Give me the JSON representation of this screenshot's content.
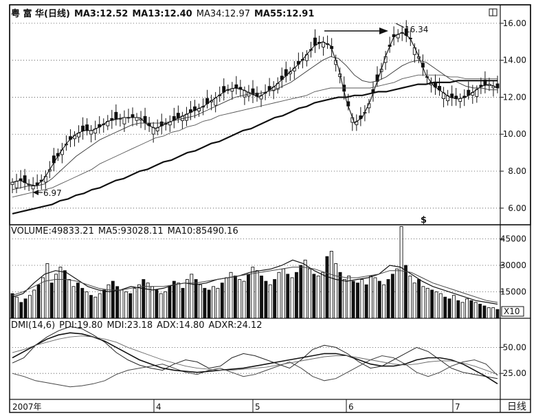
{
  "price_panel": {
    "stock_name": "粤 富 华(日线)",
    "ma3": "MA3:12.52",
    "ma13": "MA13:12.40",
    "ma34": "MA34:12.97",
    "ma55": "MA55:12.91",
    "high_label": "16.34",
    "low_label": "6.97",
    "marker": "$"
  },
  "volume_panel": {
    "volume": "VOLUME:49833.21",
    "ma5": "MA5:93028.11",
    "ma10": "MA10:85490.16",
    "unit_badge": "X10"
  },
  "dmi_panel": {
    "title": "DMI(14,6)",
    "pdi": "PDI:19.80",
    "mdi": "MDI:23.18",
    "adx": "ADX:14.80",
    "adxr": "ADXR:24.12"
  },
  "bottom_bar": {
    "period_label": "日线"
  },
  "chart_data": [
    {
      "type": "candlestick",
      "y_ticks": [
        "16.00",
        "14.00",
        "12.00",
        "10.00",
        "8.00",
        "6.00"
      ],
      "y_tick_values": [
        16,
        14,
        12,
        10,
        8,
        6
      ],
      "ylim": [
        5.1,
        17.0
      ],
      "annotations": [
        {
          "text": "16.34",
          "x": "late May",
          "y": 16.34
        },
        {
          "text": "6.97",
          "x": "early March",
          "y": 6.97
        }
      ],
      "series": [
        {
          "name": "MA3",
          "values": [
            7.4,
            7.5,
            7.3,
            7.2,
            7.6,
            8.3,
            9.0,
            9.6,
            10.0,
            10.2,
            10.2,
            10.4,
            10.7,
            10.8,
            10.9,
            10.9,
            10.9,
            10.5,
            10.3,
            10.5,
            10.7,
            10.9,
            11.1,
            11.3,
            11.5,
            11.8,
            12.1,
            12.4,
            12.5,
            12.4,
            12.2,
            12.0,
            12.3,
            12.6,
            13.0,
            13.4,
            13.8,
            14.3,
            14.8,
            15.0,
            14.8,
            13.6,
            11.8,
            10.6,
            10.9,
            11.8,
            13.0,
            14.3,
            15.3,
            15.5,
            15.2,
            14.3,
            13.2,
            12.6,
            12.3,
            12.0,
            11.9,
            12.0,
            12.3,
            12.6,
            12.7,
            12.5
          ]
        },
        {
          "name": "MA13",
          "values": [
            7.0,
            7.1,
            7.2,
            7.2,
            7.3,
            7.6,
            8.0,
            8.4,
            8.8,
            9.1,
            9.4,
            9.7,
            9.9,
            10.1,
            10.3,
            10.5,
            10.6,
            10.6,
            10.6,
            10.6,
            10.7,
            10.8,
            10.9,
            11.0,
            11.2,
            11.4,
            11.6,
            11.8,
            12.0,
            12.1,
            12.2,
            12.2,
            12.3,
            12.4,
            12.6,
            12.8,
            13.1,
            13.4,
            13.7,
            14.0,
            14.2,
            14.1,
            13.7,
            13.2,
            12.9,
            12.8,
            12.9,
            13.1,
            13.4,
            13.7,
            13.9,
            14.0,
            13.9,
            13.6,
            13.3,
            13.0,
            12.8,
            12.6,
            12.5,
            12.5,
            12.4,
            12.4
          ]
        },
        {
          "name": "MA34",
          "values": [
            6.6,
            6.7,
            6.8,
            6.9,
            7.0,
            7.1,
            7.3,
            7.5,
            7.7,
            7.9,
            8.1,
            8.4,
            8.6,
            8.8,
            9.0,
            9.2,
            9.4,
            9.6,
            9.8,
            9.9,
            10.1,
            10.2,
            10.4,
            10.5,
            10.7,
            10.8,
            11.0,
            11.1,
            11.2,
            11.3,
            11.4,
            11.5,
            11.6,
            11.7,
            11.8,
            11.9,
            12.0,
            12.1,
            12.3,
            12.4,
            12.5,
            12.5,
            12.5,
            12.5,
            12.5,
            12.5,
            12.6,
            12.7,
            12.8,
            13.0,
            13.1,
            13.2,
            13.2,
            13.2,
            13.2,
            13.1,
            13.1,
            13.0,
            13.0,
            13.0,
            13.0,
            13.0
          ]
        },
        {
          "name": "MA55",
          "values": [
            5.7,
            5.8,
            5.9,
            6.0,
            6.1,
            6.2,
            6.4,
            6.5,
            6.7,
            6.8,
            7.0,
            7.1,
            7.3,
            7.5,
            7.6,
            7.8,
            8.0,
            8.1,
            8.3,
            8.5,
            8.6,
            8.8,
            9.0,
            9.1,
            9.3,
            9.5,
            9.6,
            9.8,
            10.0,
            10.2,
            10.3,
            10.5,
            10.7,
            10.9,
            11.0,
            11.2,
            11.4,
            11.5,
            11.7,
            11.8,
            11.9,
            12.0,
            12.0,
            12.1,
            12.1,
            12.2,
            12.3,
            12.3,
            12.4,
            12.5,
            12.6,
            12.7,
            12.7,
            12.8,
            12.8,
            12.8,
            12.9,
            12.9,
            12.9,
            12.9,
            12.9,
            12.9
          ]
        }
      ]
    },
    {
      "type": "bar",
      "y_ticks": [
        "45000",
        "30000",
        "15000"
      ],
      "y_tick_values": [
        45000,
        30000,
        15000
      ],
      "ylim": [
        0,
        53000
      ],
      "values": [
        14000,
        12000,
        9000,
        11000,
        13000,
        16000,
        19000,
        23000,
        31000,
        20000,
        25000,
        29000,
        27000,
        22000,
        18000,
        20000,
        17000,
        15000,
        13000,
        12000,
        14000,
        16000,
        19000,
        21000,
        18000,
        16000,
        15000,
        14000,
        17000,
        19000,
        22000,
        20000,
        18000,
        16000,
        14000,
        15000,
        18000,
        21000,
        20000,
        17000,
        22000,
        25000,
        22000,
        19000,
        17000,
        16000,
        18000,
        17000,
        20000,
        23000,
        26000,
        24000,
        22000,
        21000,
        25000,
        29000,
        27000,
        24000,
        21000,
        19000,
        22000,
        26000,
        28000,
        25000,
        23000,
        26000,
        30000,
        33000,
        28000,
        25000,
        24000,
        26000,
        35000,
        38000,
        31000,
        26000,
        22000,
        24000,
        21000,
        20000,
        22000,
        19000,
        24000,
        23000,
        21000,
        19000,
        22000,
        25000,
        28000,
        52000,
        30000,
        24000,
        20000,
        22000,
        18000,
        17000,
        16000,
        15000,
        14000,
        12000,
        11000,
        13000,
        10000,
        9000,
        11000,
        10000,
        9000,
        8000,
        7000,
        6000,
        6000,
        5000
      ],
      "series": [
        {
          "name": "MA5",
          "values": [
            12000,
            14000,
            20000,
            25000,
            27000,
            26000,
            22000,
            18000,
            16000,
            15000,
            16000,
            18000,
            17000,
            16000,
            17000,
            19000,
            20000,
            19000,
            20000,
            22000,
            23000,
            24000,
            26000,
            27000,
            28000,
            30000,
            33000,
            31000,
            27000,
            24000,
            22000,
            21000,
            22000,
            23000,
            25000,
            30000,
            29000,
            25000,
            21000,
            18000,
            16000,
            14000,
            12000,
            10000,
            9000,
            8000
          ]
        },
        {
          "name": "MA10",
          "values": [
            13000,
            15000,
            18000,
            21000,
            22000,
            22000,
            21000,
            19000,
            17000,
            16000,
            16000,
            17000,
            18000,
            18000,
            18000,
            19000,
            20000,
            20000,
            21000,
            22000,
            23000,
            24000,
            25000,
            26000,
            27000,
            28000,
            29000,
            29000,
            28000,
            26000,
            24000,
            23000,
            23000,
            24000,
            25000,
            27000,
            27000,
            26000,
            23000,
            20000,
            18000,
            16000,
            14000,
            12000,
            10000,
            9000
          ]
        }
      ]
    },
    {
      "type": "line",
      "y_ticks": [
        "50.00",
        "25.00"
      ],
      "y_tick_values": [
        50,
        25
      ],
      "ylim": [
        0,
        78
      ],
      "x_tick_labels": [
        "2007年",
        "4",
        "5",
        "6",
        "7"
      ],
      "series": [
        {
          "name": "PDI",
          "values": [
            35,
            40,
            52,
            60,
            66,
            70,
            68,
            62,
            55,
            45,
            38,
            33,
            30,
            28,
            34,
            38,
            36,
            30,
            32,
            40,
            44,
            42,
            38,
            34,
            30,
            38,
            48,
            52,
            50,
            44,
            36,
            30,
            32,
            38,
            44,
            50,
            46,
            38,
            30,
            26,
            24,
            22,
            20
          ]
        },
        {
          "name": "MDI",
          "values": [
            25,
            22,
            18,
            16,
            14,
            12,
            13,
            15,
            18,
            24,
            28,
            30,
            32,
            34,
            30,
            26,
            24,
            28,
            30,
            26,
            22,
            24,
            28,
            32,
            36,
            30,
            22,
            18,
            20,
            26,
            32,
            38,
            42,
            40,
            34,
            26,
            22,
            26,
            32,
            36,
            38,
            34,
            23
          ]
        },
        {
          "name": "ADX",
          "values": [
            40,
            46,
            52,
            58,
            62,
            64,
            63,
            60,
            56,
            50,
            44,
            38,
            34,
            30,
            28,
            27,
            26,
            27,
            28,
            29,
            30,
            32,
            34,
            36,
            38,
            40,
            42,
            44,
            44,
            42,
            38,
            34,
            32,
            32,
            34,
            38,
            40,
            40,
            38,
            34,
            28,
            22,
            15
          ]
        },
        {
          "name": "ADXR",
          "values": [
            45,
            48,
            52,
            55,
            58,
            60,
            61,
            60,
            58,
            55,
            50,
            46,
            42,
            38,
            35,
            32,
            30,
            29,
            28,
            28,
            29,
            30,
            31,
            33,
            35,
            37,
            39,
            41,
            42,
            42,
            40,
            38,
            36,
            34,
            33,
            34,
            36,
            37,
            37,
            35,
            32,
            28,
            24
          ]
        }
      ]
    }
  ]
}
